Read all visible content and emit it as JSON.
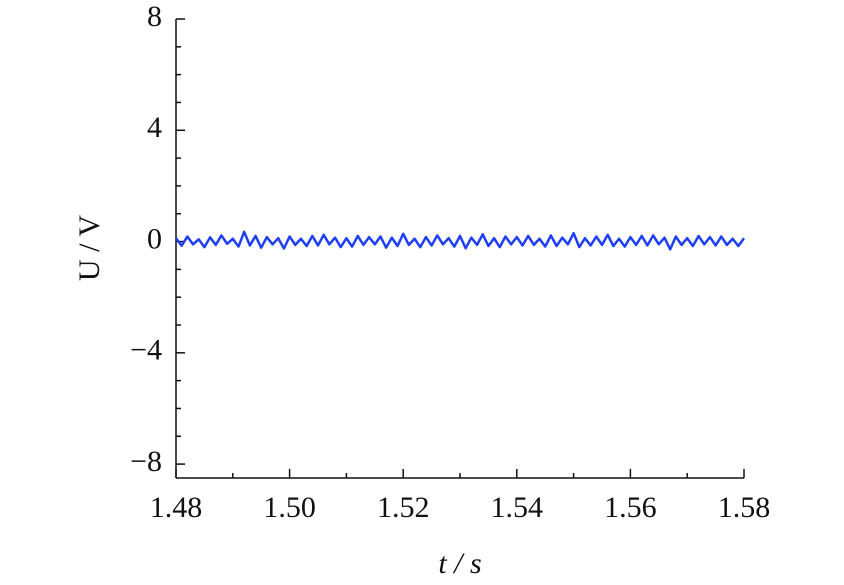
{
  "chart_data": {
    "type": "line",
    "xlabel": "t / s",
    "ylabel": "U / V",
    "x": [
      1.48,
      1.481,
      1.482,
      1.483,
      1.484,
      1.485,
      1.486,
      1.487,
      1.488,
      1.489,
      1.49,
      1.491,
      1.492,
      1.493,
      1.494,
      1.495,
      1.496,
      1.497,
      1.498,
      1.499,
      1.5,
      1.501,
      1.502,
      1.503,
      1.504,
      1.505,
      1.506,
      1.507,
      1.508,
      1.509,
      1.51,
      1.511,
      1.512,
      1.513,
      1.514,
      1.515,
      1.516,
      1.517,
      1.518,
      1.519,
      1.52,
      1.521,
      1.522,
      1.523,
      1.524,
      1.525,
      1.526,
      1.527,
      1.528,
      1.529,
      1.53,
      1.531,
      1.532,
      1.533,
      1.534,
      1.535,
      1.536,
      1.537,
      1.538,
      1.539,
      1.54,
      1.541,
      1.542,
      1.543,
      1.544,
      1.545,
      1.546,
      1.547,
      1.548,
      1.549,
      1.55,
      1.551,
      1.552,
      1.553,
      1.554,
      1.555,
      1.556,
      1.557,
      1.558,
      1.559,
      1.56,
      1.561,
      1.562,
      1.563,
      1.564,
      1.565,
      1.566,
      1.567,
      1.568,
      1.569,
      1.57,
      1.571,
      1.572,
      1.573,
      1.574,
      1.575,
      1.576,
      1.577,
      1.578,
      1.579,
      1.58
    ],
    "series": [
      {
        "color": "#1f3ff5",
        "values": [
          0.12,
          -0.15,
          0.18,
          -0.1,
          0.08,
          -0.2,
          0.15,
          -0.12,
          0.22,
          -0.08,
          0.1,
          -0.18,
          0.35,
          -0.14,
          0.2,
          -0.22,
          0.16,
          -0.1,
          0.12,
          -0.25,
          0.18,
          -0.12,
          0.1,
          -0.16,
          0.2,
          -0.14,
          0.24,
          -0.1,
          0.14,
          -0.2,
          0.12,
          -0.18,
          0.2,
          -0.12,
          0.16,
          -0.1,
          0.18,
          -0.22,
          0.14,
          -0.16,
          0.28,
          -0.12,
          0.1,
          -0.2,
          0.16,
          -0.14,
          0.22,
          -0.1,
          0.12,
          -0.18,
          0.2,
          -0.24,
          0.14,
          -0.12,
          0.26,
          -0.16,
          0.12,
          -0.2,
          0.18,
          -0.1,
          0.16,
          -0.14,
          0.2,
          -0.12,
          0.1,
          -0.18,
          0.22,
          -0.16,
          0.14,
          -0.1,
          0.3,
          -0.2,
          0.12,
          -0.14,
          0.18,
          -0.12,
          0.24,
          -0.16,
          0.1,
          -0.18,
          0.16,
          -0.12,
          0.2,
          -0.14,
          0.22,
          -0.1,
          0.14,
          -0.28,
          0.18,
          -0.12,
          0.12,
          -0.16,
          0.2,
          -0.1,
          0.16,
          -0.14,
          0.18,
          -0.12,
          0.1,
          -0.16,
          0.12
        ]
      }
    ],
    "xlim": [
      1.48,
      1.58
    ],
    "xticks": [
      1.48,
      {
        "value": 1.5,
        "label": "1.50"
      },
      1.52,
      1.54,
      1.56,
      1.58
    ],
    "ylim": [
      -8.5,
      8
    ],
    "yticks": [
      {
        "value": -8,
        "label": "−8"
      },
      {
        "value": -4,
        "label": "−4"
      },
      0,
      4,
      8
    ]
  }
}
